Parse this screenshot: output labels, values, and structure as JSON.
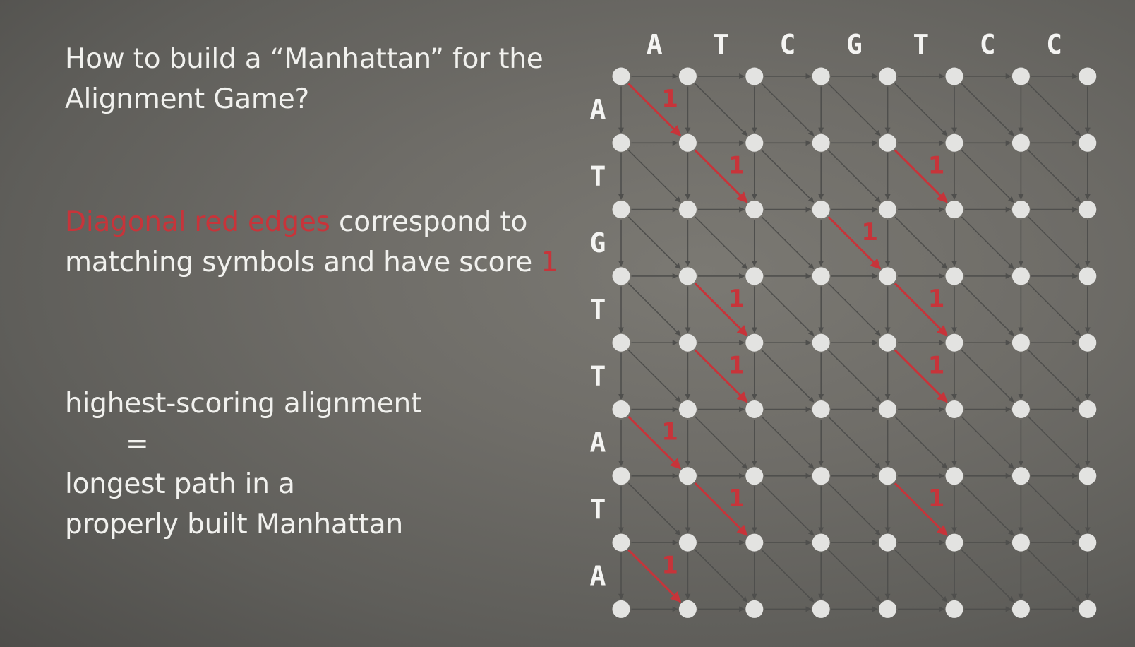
{
  "title": {
    "line1": "How to build a “Manhattan” for the",
    "line2": "Alignment Game?"
  },
  "statement": {
    "highlight": "Diagonal red edges",
    "line1_rest": " correspond to",
    "line2_prefix": "matching symbols and have score ",
    "score_value": "1"
  },
  "conclusion": {
    "line1": "highest-scoring alignment",
    "equals": "=",
    "line2": "longest path in a",
    "line3": "properly built Manhattan"
  },
  "grid": {
    "top_sequence": [
      "A",
      "T",
      "C",
      "G",
      "T",
      "C",
      "C"
    ],
    "left_sequence": [
      "A",
      "T",
      "G",
      "T",
      "T",
      "A",
      "T",
      "A"
    ],
    "match_score": "1",
    "colors": {
      "node": "#e3e3e1",
      "edge": "#4f4f4d",
      "match_edge": "#c7343a"
    }
  }
}
